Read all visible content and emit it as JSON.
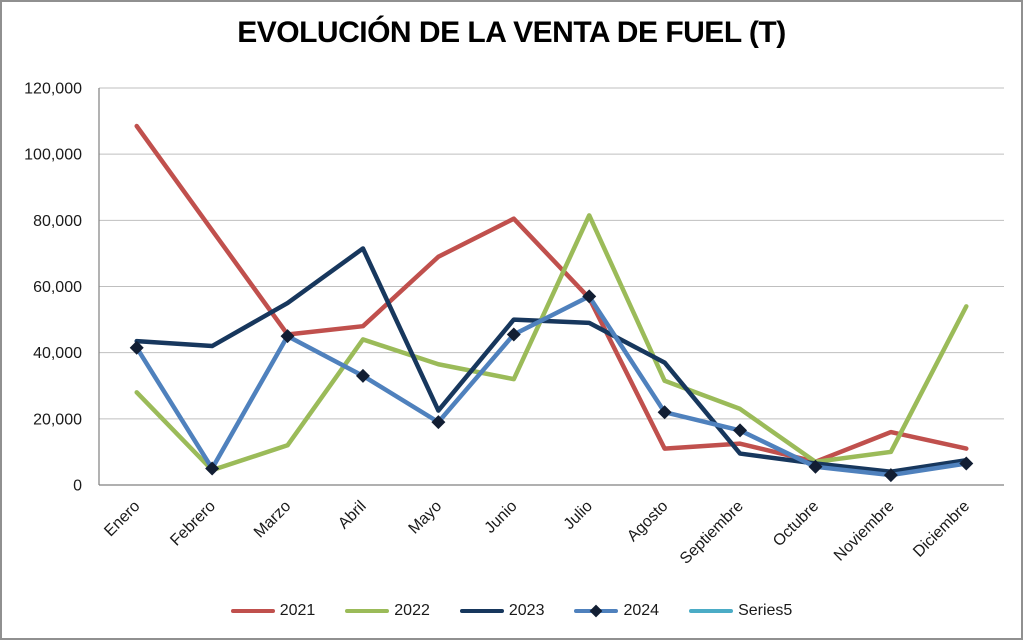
{
  "chart_data": {
    "type": "line",
    "title": "EVOLUCIÓN DE LA VENTA DE FUEL (T)",
    "categories": [
      "Enero",
      "Febrero",
      "Marzo",
      "Abril",
      "Mayo",
      "Junio",
      "Julio",
      "Agosto",
      "Septiembre",
      "Octubre",
      "Noviembre",
      "Diciembre"
    ],
    "series": [
      {
        "name": "2021",
        "color": "#C0504D",
        "marker": "none",
        "values": [
          108500,
          77000,
          45500,
          48000,
          69000,
          80500,
          56500,
          11000,
          12500,
          7000,
          16000,
          11000
        ]
      },
      {
        "name": "2022",
        "color": "#9BBB59",
        "marker": "none",
        "values": [
          28000,
          4500,
          12000,
          44000,
          36500,
          32000,
          81500,
          31500,
          23000,
          7000,
          10000,
          54000
        ]
      },
      {
        "name": "2023",
        "color": "#17375D",
        "marker": "none",
        "values": [
          43500,
          42000,
          55000,
          71500,
          22500,
          50000,
          49000,
          37000,
          9500,
          6500,
          4000,
          7500
        ]
      },
      {
        "name": "2024",
        "color": "#4F81BD",
        "marker": "diamond",
        "marker_color": "#121E33",
        "values": [
          41500,
          5000,
          45000,
          33000,
          19000,
          45500,
          57000,
          22000,
          16500,
          5500,
          3000,
          6500
        ]
      },
      {
        "name": "Series5",
        "color": "#4BACC6",
        "marker": "none",
        "values": []
      }
    ],
    "xlabel": "",
    "ylabel": "",
    "ylim": [
      0,
      120000
    ],
    "y_tick_step": 20000,
    "y_tick_labels": [
      "0",
      "20,000",
      "40,000",
      "60,000",
      "80,000",
      "100,000",
      "120,000"
    ],
    "grid": "horizontal",
    "legend_position": "bottom"
  }
}
